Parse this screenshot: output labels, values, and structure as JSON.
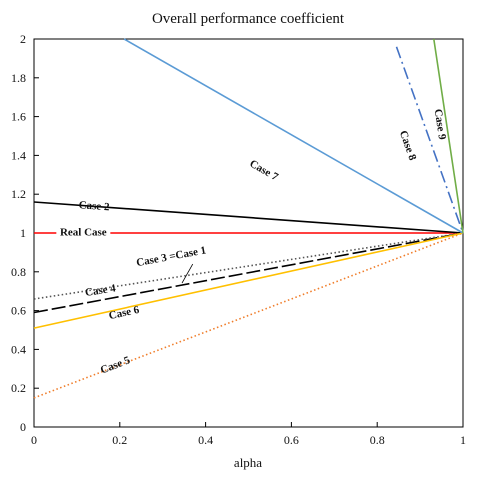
{
  "chart_data": {
    "type": "line",
    "title": "Overall performance coefficient",
    "xlabel": "alpha",
    "ylabel": "",
    "xlim": [
      0,
      1
    ],
    "ylim": [
      0,
      2
    ],
    "xticks": [
      "0",
      "0.2",
      "0.4",
      "0.6",
      "0.8",
      "1"
    ],
    "yticks": [
      "0",
      "0.2",
      "0.4",
      "0.6",
      "0.8",
      "1",
      "1.2",
      "1.4",
      "1.6",
      "1.8",
      "2"
    ],
    "grid": false,
    "series": [
      {
        "name": "Real Case",
        "color": "#ff0000",
        "dash": "solid",
        "x": [
          0,
          1
        ],
        "y": [
          1.0,
          1.0
        ]
      },
      {
        "name": "Case 2",
        "color": "#000000",
        "dash": "solid",
        "x": [
          0,
          1
        ],
        "y": [
          1.16,
          1.0
        ]
      },
      {
        "name": "Case 3 =Case 1",
        "color": "#000000",
        "dash": "longdash",
        "x": [
          0,
          1
        ],
        "y": [
          0.59,
          1.0
        ]
      },
      {
        "name": "Case 4",
        "color": "#555555",
        "dash": "dotted",
        "x": [
          0,
          1
        ],
        "y": [
          0.66,
          1.0
        ]
      },
      {
        "name": "Case 5",
        "color": "#f07d2a",
        "dash": "dotted",
        "x": [
          0,
          1
        ],
        "y": [
          0.15,
          1.0
        ]
      },
      {
        "name": "Case 6",
        "color": "#ffc000",
        "dash": "solid",
        "x": [
          0,
          1
        ],
        "y": [
          0.51,
          1.0
        ]
      },
      {
        "name": "Case 7",
        "color": "#5b9bd5",
        "dash": "solid",
        "x": [
          0.21,
          1
        ],
        "y": [
          2.0,
          1.0
        ]
      },
      {
        "name": "Case 8",
        "color": "#4472c4",
        "dash": "dashdot",
        "x": [
          0.845,
          1
        ],
        "y": [
          1.96,
          1.0
        ]
      },
      {
        "name": "Case 9",
        "color": "#70ad47",
        "dash": "solid",
        "x": [
          0.932,
          1
        ],
        "y": [
          2.0,
          1.0
        ]
      }
    ],
    "annotations": [
      {
        "text": "Case 2",
        "series": "Case 2",
        "x": 0.14,
        "y": 1.135
      },
      {
        "text": "Real Case",
        "series": "Real Case",
        "x": 0.115,
        "y": 1.0
      },
      {
        "text": "Case 3 =Case 1",
        "series": "Case 3 =Case 1",
        "x": 0.32,
        "y": 0.875
      },
      {
        "text": "Case 4",
        "series": "Case 4",
        "x": 0.155,
        "y": 0.7
      },
      {
        "text": "Case 6",
        "series": "Case 6",
        "x": 0.21,
        "y": 0.585
      },
      {
        "text": "Case 5",
        "series": "Case 5",
        "x": 0.19,
        "y": 0.315
      },
      {
        "text": "Case 7",
        "series": "Case 7",
        "x": 0.535,
        "y": 1.32
      },
      {
        "text": "Case 8",
        "series": "Case 8",
        "x": 0.87,
        "y": 1.45
      },
      {
        "text": "Case 9",
        "series": "Case 9",
        "x": 0.945,
        "y": 1.56
      }
    ]
  }
}
